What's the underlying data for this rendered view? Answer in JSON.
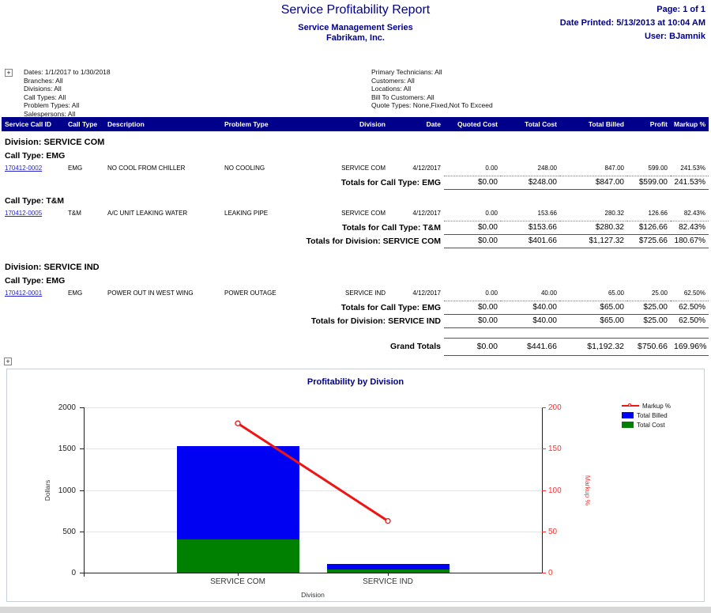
{
  "header": {
    "title": "Service Profitability Report",
    "subtitle1": "Service Management Series",
    "subtitle2": "Fabrikam, Inc.",
    "page_info": "Page: 1 of 1",
    "date_printed": "Date Printed: 5/13/2013 at 10:04 AM",
    "user": "User: BJamnik"
  },
  "icons": {
    "expand": "+"
  },
  "criteria": {
    "left": {
      "0": "Dates: 1/1/2017 to 1/30/2018",
      "1": "Branches: All",
      "2": "Divisions: All",
      "3": "Call Types: All",
      "4": "Problem Types: All",
      "5": "Salespersons: All"
    },
    "right": {
      "0": "Primary Technicians: All",
      "1": "Customers: All",
      "2": "Locations: All",
      "3": "Bill To Customers: All",
      "4": "Quote Types: None,Fixed,Not To Exceed"
    }
  },
  "report": {
    "columns": [
      "Service Call ID",
      "Call Type",
      "Description",
      "Problem Type",
      "Division",
      "Date",
      "Quoted Cost",
      "Total Cost",
      "Total Billed",
      "Profit",
      "Markup %"
    ],
    "sections": [
      {
        "division_label": "Division: SERVICE COM",
        "groups": [
          {
            "call_type_label": "Call Type: EMG",
            "row": {
              "id": "170412-0002",
              "call_type": "EMG",
              "description": "NO COOL FROM CHILLER",
              "problem_type": "NO COOLING",
              "division": "SERVICE COM",
              "date": "4/12/2017",
              "quoted_cost": "0.00",
              "total_cost": "248.00",
              "total_billed": "847.00",
              "profit": "599.00",
              "markup": "241.53%"
            },
            "totals": {
              "label": "Totals for Call Type: EMG",
              "quoted_cost": "$0.00",
              "total_cost": "$248.00",
              "total_billed": "$847.00",
              "profit": "$599.00",
              "markup": "241.53%"
            }
          },
          {
            "call_type_label": "Call Type: T&M",
            "row": {
              "id": "170412-0005",
              "call_type": "T&M",
              "description": "A/C UNIT LEAKING WATER",
              "problem_type": "LEAKING PIPE",
              "division": "SERVICE COM",
              "date": "4/12/2017",
              "quoted_cost": "0.00",
              "total_cost": "153.66",
              "total_billed": "280.32",
              "profit": "126.66",
              "markup": "82.43%"
            },
            "totals": {
              "label": "Totals for Call Type: T&M",
              "quoted_cost": "$0.00",
              "total_cost": "$153.66",
              "total_billed": "$280.32",
              "profit": "$126.66",
              "markup": "82.43%"
            }
          }
        ],
        "division_totals": {
          "label": "Totals for Division: SERVICE COM",
          "quoted_cost": "$0.00",
          "total_cost": "$401.66",
          "total_billed": "$1,127.32",
          "profit": "$725.66",
          "markup": "180.67%"
        }
      },
      {
        "division_label": "Division: SERVICE IND",
        "groups": [
          {
            "call_type_label": "Call Type: EMG",
            "row": {
              "id": "170412-0001",
              "call_type": "EMG",
              "description": "POWER OUT IN WEST WING",
              "problem_type": "POWER OUTAGE",
              "division": "SERVICE IND",
              "date": "4/12/2017",
              "quoted_cost": "0.00",
              "total_cost": "40.00",
              "total_billed": "65.00",
              "profit": "25.00",
              "markup": "62.50%"
            },
            "totals": {
              "label": "Totals for Call Type: EMG",
              "quoted_cost": "$0.00",
              "total_cost": "$40.00",
              "total_billed": "$65.00",
              "profit": "$25.00",
              "markup": "62.50%"
            }
          }
        ],
        "division_totals": {
          "label": "Totals for Division: SERVICE IND",
          "quoted_cost": "$0.00",
          "total_cost": "$40.00",
          "total_billed": "$65.00",
          "profit": "$25.00",
          "markup": "62.50%"
        }
      }
    ],
    "grand_totals": {
      "label": "Grand Totals",
      "quoted_cost": "$0.00",
      "total_cost": "$441.66",
      "total_billed": "$1,192.32",
      "profit": "$750.66",
      "markup": "169.96%"
    }
  },
  "chart_data": {
    "type": "bar",
    "subtype": "stacked-bar-with-line",
    "title": "Profitability by Division",
    "categories": [
      "SERVICE COM",
      "SERVICE IND"
    ],
    "series": [
      {
        "name": "Total Billed",
        "kind": "bar",
        "color": "#0000f2",
        "values": [
          1127.32,
          65.0
        ]
      },
      {
        "name": "Total Cost",
        "kind": "bar",
        "color": "#008000",
        "values": [
          401.66,
          40.0
        ]
      },
      {
        "name": "Markup %",
        "kind": "line",
        "color": "#ee1515",
        "axis": "right",
        "values": [
          180.67,
          62.5
        ]
      }
    ],
    "stacked": true,
    "xlabel": "Division",
    "ylabel": "Dollars",
    "y2label": "Markup %",
    "ylim": [
      0,
      2000
    ],
    "y2lim": [
      0,
      200
    ],
    "yticks": [
      0,
      500,
      1000,
      1500,
      2000
    ],
    "y2ticks": [
      0,
      50,
      100,
      150,
      200
    ],
    "legend": [
      "Markup %",
      "Total Billed",
      "Total Cost"
    ],
    "legend_position": "top-right",
    "grid": true
  }
}
